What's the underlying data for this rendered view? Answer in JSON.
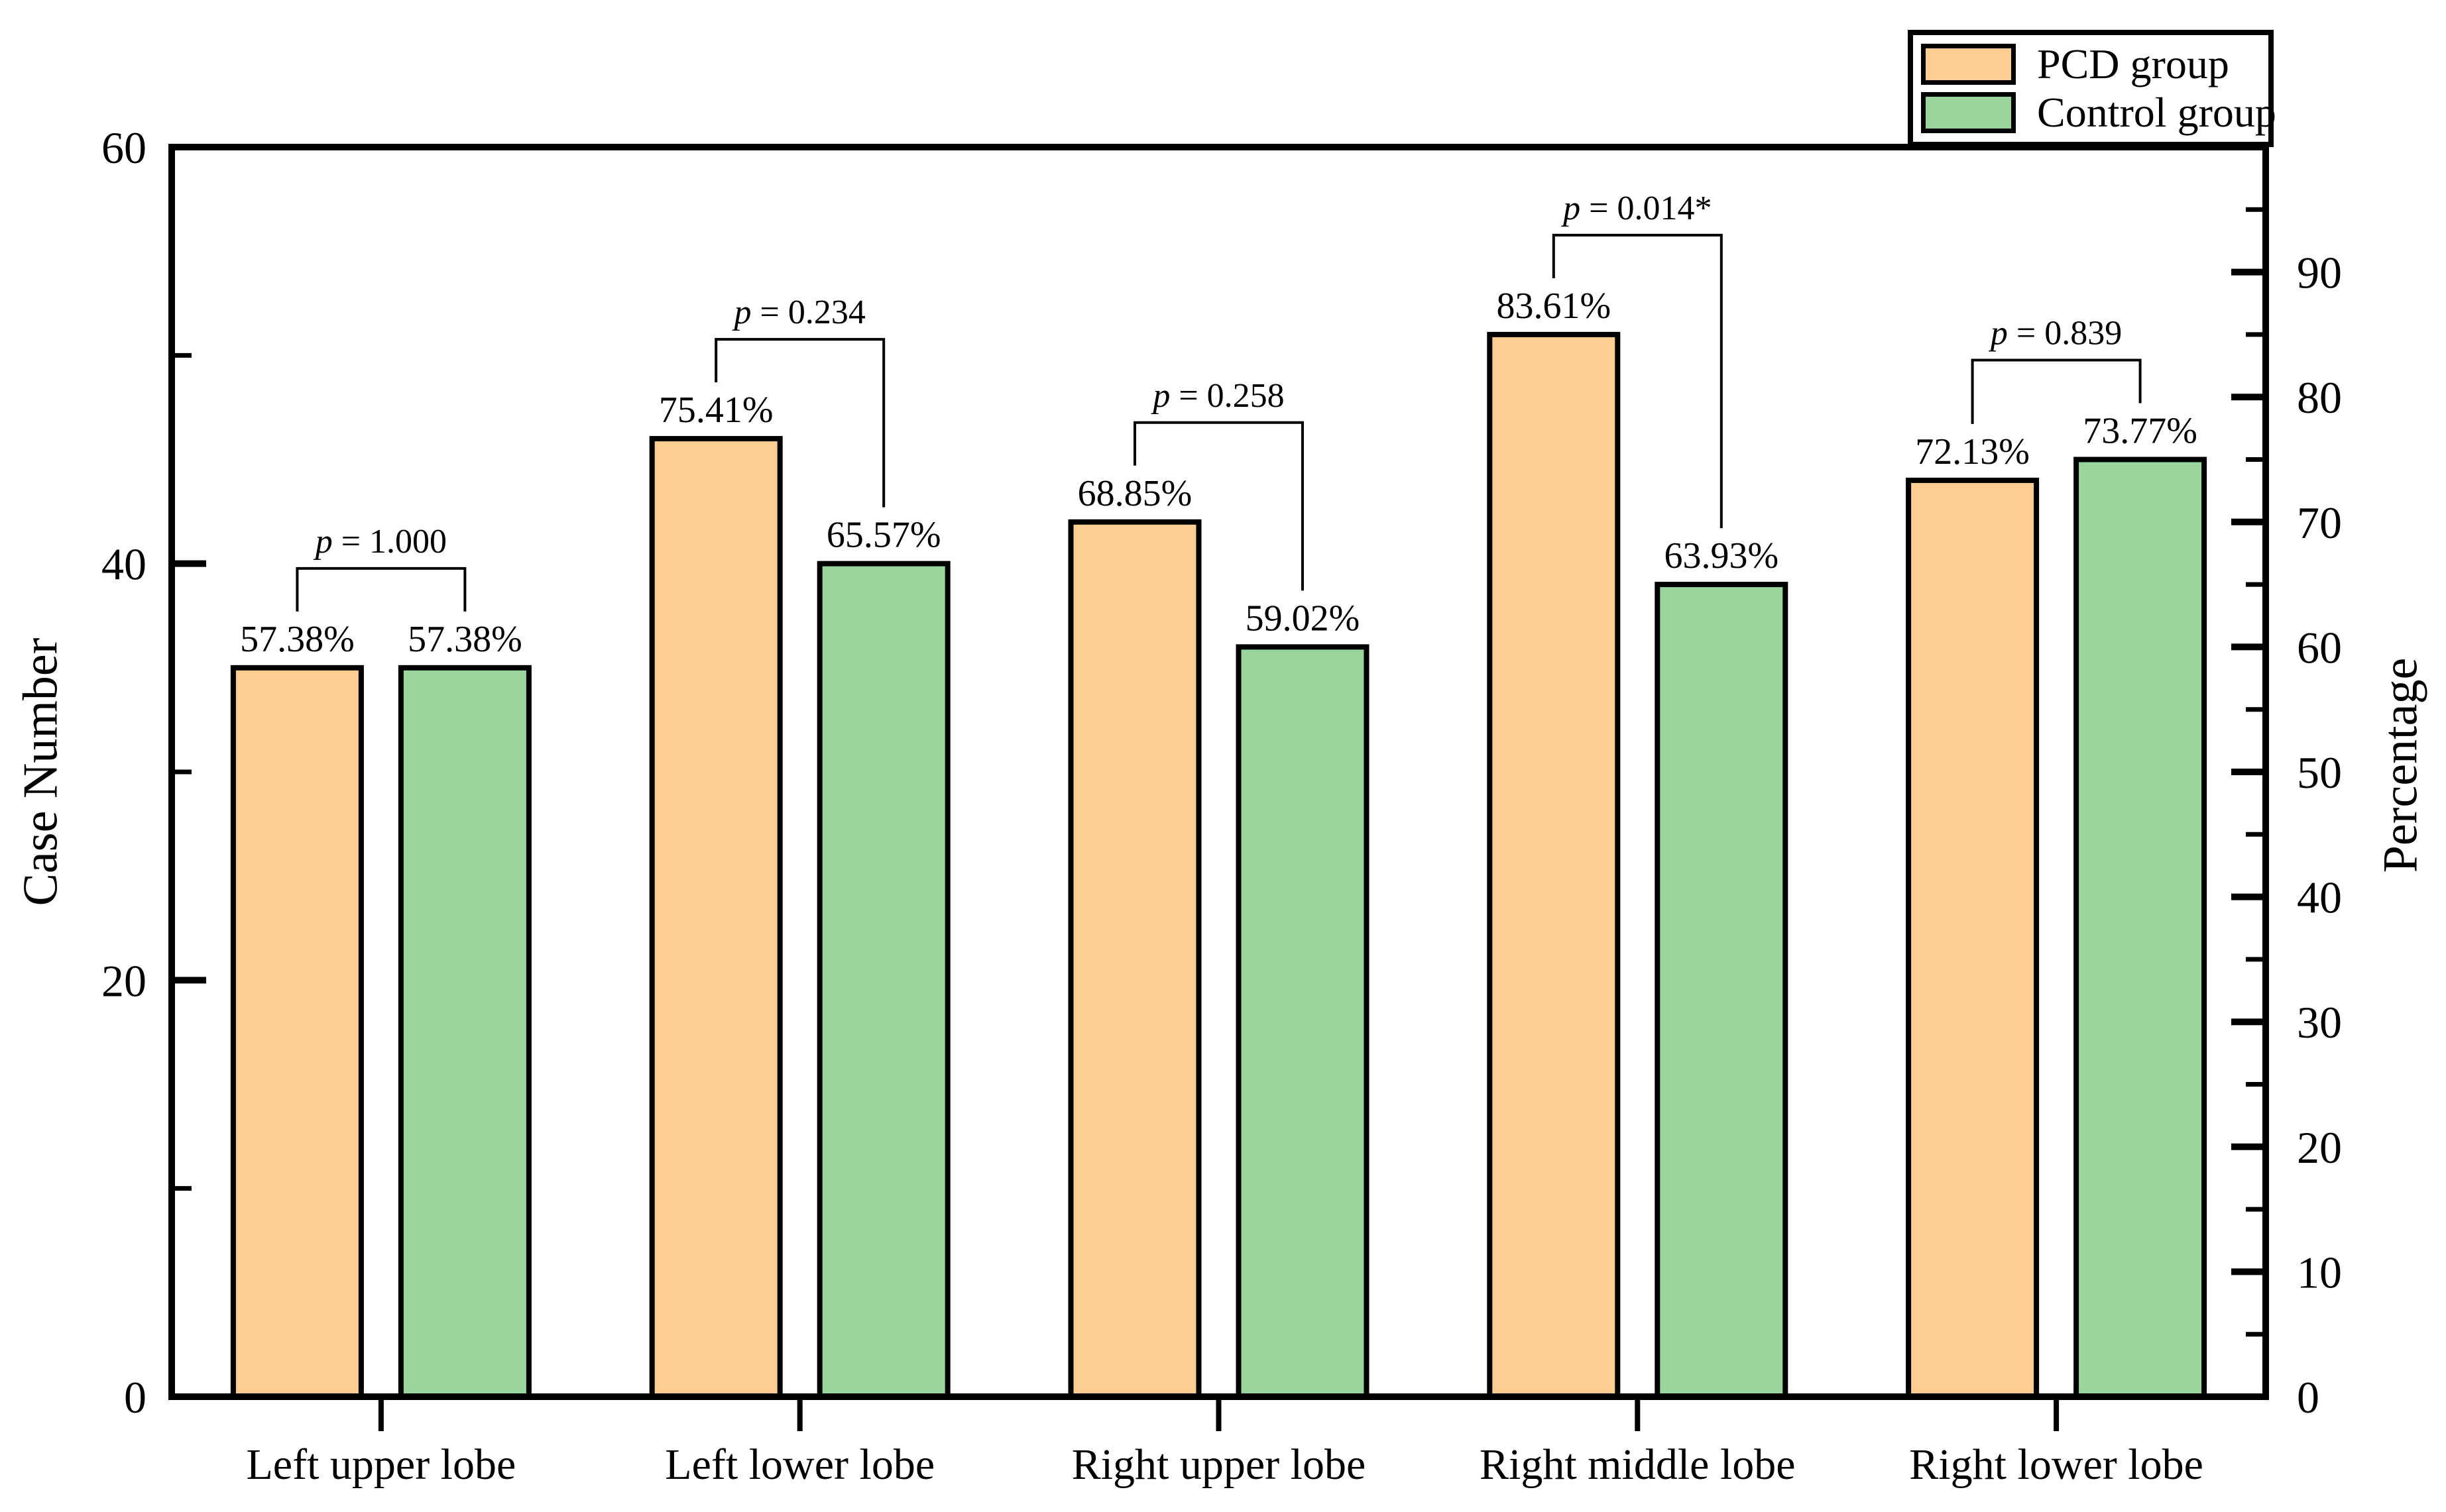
{
  "figure": {
    "background": "#FFFFFF",
    "text_color": "#000000"
  },
  "legend": {
    "position": "top-right",
    "entries": [
      {
        "label": "PCD group",
        "color": "#FDCD92"
      },
      {
        "label": "Control group",
        "color": "#9AD59E"
      }
    ]
  },
  "chart_data": {
    "type": "bar",
    "title": "",
    "categories": [
      "Left upper lobe",
      "Left lower lobe",
      "Right upper lobe",
      "Right middle lobe",
      "Right lower lobe"
    ],
    "series": [
      {
        "name": "PCD group",
        "color": "#FDCD92",
        "edge_color": "#000000",
        "case_numbers": [
          35,
          46,
          42,
          51,
          44
        ],
        "percent_labels": [
          "57.38%",
          "75.41%",
          "68.85%",
          "83.61%",
          "72.13%"
        ]
      },
      {
        "name": "Control group",
        "color": "#9AD59E",
        "edge_color": "#000000",
        "case_numbers": [
          35,
          40,
          36,
          39,
          45
        ],
        "percent_labels": [
          "57.38%",
          "65.57%",
          "59.02%",
          "63.93%",
          "73.77%"
        ]
      }
    ],
    "p_values": [
      "p = 1.000",
      "p = 0.234",
      "p = 0.258",
      "p = 0.014*",
      "p = 0.839"
    ],
    "left_axis": {
      "label": "Case Number",
      "min": 0,
      "max": 60,
      "major_ticks": [
        0,
        20,
        40,
        60
      ],
      "minor_ticks": [
        10,
        30,
        50
      ]
    },
    "right_axis": {
      "label": "Percentage",
      "min": 0,
      "max": 100,
      "major_ticks": [
        0,
        10,
        20,
        30,
        40,
        50,
        60,
        70,
        80,
        90
      ],
      "minor_ticks": [
        5,
        15,
        25,
        35,
        45,
        55,
        65,
        75,
        85,
        95
      ]
    },
    "grid": false,
    "legend_position": "top-right"
  }
}
